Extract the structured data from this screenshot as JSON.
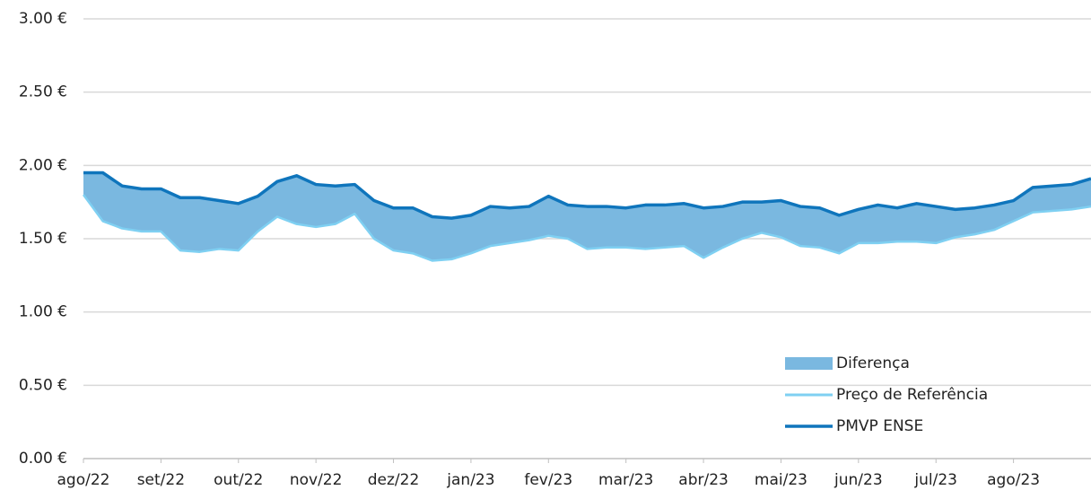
{
  "chart_data": {
    "type": "area_between",
    "categories": [
      "ago/22",
      null,
      null,
      null,
      "set/22",
      null,
      null,
      null,
      "out/22",
      null,
      null,
      null,
      "nov/22",
      null,
      null,
      null,
      "dez/22",
      null,
      null,
      null,
      "jan/23",
      null,
      null,
      null,
      "fev/23",
      null,
      null,
      null,
      "mar/23",
      null,
      null,
      null,
      "abr/23",
      null,
      null,
      null,
      "mai/23",
      null,
      null,
      null,
      "jun/23",
      null,
      null,
      null,
      "jul/23",
      null,
      null,
      null,
      "ago/23",
      null,
      null,
      null,
      null
    ],
    "series": [
      {
        "name": "Diferença",
        "color": "#7ab8e0",
        "between": [
          1,
          2
        ]
      },
      {
        "name": "Preço de Referência",
        "color": "#7fd0f2",
        "values": [
          1.8,
          1.62,
          1.57,
          1.55,
          1.55,
          1.42,
          1.41,
          1.43,
          1.42,
          1.55,
          1.65,
          1.6,
          1.58,
          1.6,
          1.67,
          1.5,
          1.42,
          1.4,
          1.35,
          1.36,
          1.4,
          1.45,
          1.47,
          1.49,
          1.52,
          1.5,
          1.43,
          1.44,
          1.44,
          1.43,
          1.44,
          1.45,
          1.37,
          1.44,
          1.5,
          1.54,
          1.51,
          1.45,
          1.44,
          1.4,
          1.47,
          1.47,
          1.48,
          1.48,
          1.47,
          1.51,
          1.53,
          1.56,
          1.62,
          1.68,
          1.69,
          1.7,
          1.72
        ]
      },
      {
        "name": "PMVP ENSE",
        "color": "#0f75bc",
        "values": [
          1.95,
          1.95,
          1.86,
          1.84,
          1.84,
          1.78,
          1.78,
          1.76,
          1.74,
          1.79,
          1.89,
          1.93,
          1.87,
          1.86,
          1.87,
          1.76,
          1.71,
          1.71,
          1.65,
          1.64,
          1.66,
          1.72,
          1.71,
          1.72,
          1.79,
          1.73,
          1.72,
          1.72,
          1.71,
          1.73,
          1.73,
          1.74,
          1.71,
          1.72,
          1.75,
          1.75,
          1.76,
          1.72,
          1.71,
          1.66,
          1.7,
          1.73,
          1.71,
          1.74,
          1.72,
          1.7,
          1.71,
          1.73,
          1.76,
          1.85,
          1.86,
          1.87,
          1.91
        ]
      }
    ],
    "ylim": [
      0,
      3
    ],
    "yticks": [
      {
        "value": 0,
        "label": "0.00 €"
      },
      {
        "value": 0.5,
        "label": "0.50 €"
      },
      {
        "value": 1,
        "label": "1.00 €"
      },
      {
        "value": 1.5,
        "label": "1.50 €"
      },
      {
        "value": 2,
        "label": "2.00 €"
      },
      {
        "value": 2.5,
        "label": "2.50 €"
      },
      {
        "value": 3,
        "label": "3.00 €"
      }
    ],
    "grid": true,
    "legend": "lower right"
  }
}
